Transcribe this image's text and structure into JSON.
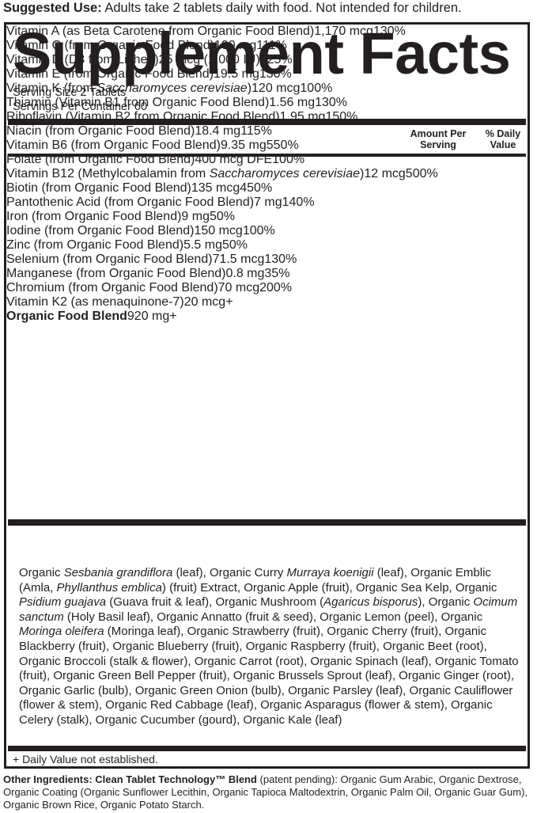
{
  "suggested_use": {
    "label": "Suggested Use:",
    "text": " Adults take 2 tablets daily with food. Not intended for children."
  },
  "title": "Supplement Facts",
  "serving_size": "Serving Size 2 Tablets",
  "servings_per_container": "Servings Per Container 60",
  "header": {
    "amount": "Amount Per Serving",
    "daily_value": "% Daily Value"
  },
  "rows": [
    {
      "name": [
        "Vitamin A (as Beta Carotene from Organic Food Blend)"
      ],
      "amount": "1,170 mcg",
      "dv": "130%"
    },
    {
      "name": [
        "Vitamin C (from Organic Food Blend)"
      ],
      "amount": "100 mg",
      "dv": "111%"
    },
    {
      "name": [
        "Vitamin D (D3 from Lichen)"
      ],
      "amount": "25 mcg (1,000 IU)",
      "dv": "125%"
    },
    {
      "name": [
        "Vitamin E (from Organic Food Blend)"
      ],
      "amount": "19.5 mg",
      "dv": "130%"
    },
    {
      "name": [
        "Vitamin K (from ",
        "Saccharomyces cerevisiae",
        ")"
      ],
      "amount": "120 mcg",
      "dv": "100%"
    },
    {
      "name": [
        "Thiamin (Vitamin B1 from Organic Food Blend)"
      ],
      "amount": "1.56 mg",
      "dv": "130%"
    },
    {
      "name": [
        "Riboflavin (Vitamin B2 from Organic Food Blend)"
      ],
      "amount": "1.95 mg",
      "dv": "150%"
    },
    {
      "name": [
        "Niacin (from Organic Food Blend)"
      ],
      "amount": "18.4 mg",
      "dv": "115%"
    },
    {
      "name": [
        "Vitamin B6 (from Organic Food Blend)"
      ],
      "amount": "9.35 mg",
      "dv": "550%"
    },
    {
      "name": [
        "Folate (from Organic Food Blend)"
      ],
      "amount": "400 mcg DFE",
      "dv": "100%"
    },
    {
      "name": [
        "Vitamin B12 (Methylcobalamin from ",
        "Saccharomyces cerevisiae",
        ")"
      ],
      "amount": "12 mcg",
      "dv": "500%"
    },
    {
      "name": [
        "Biotin (from Organic Food Blend)"
      ],
      "amount": "135 mcg",
      "dv": "450%"
    },
    {
      "name": [
        "Pantothenic Acid (from Organic Food Blend)"
      ],
      "amount": "7 mg",
      "dv": "140%"
    },
    {
      "name": [
        "Iron (from Organic Food Blend)"
      ],
      "amount": "9 mg",
      "dv": "50%"
    },
    {
      "name": [
        "Iodine (from Organic Food Blend)"
      ],
      "amount": "150 mcg",
      "dv": "100%"
    },
    {
      "name": [
        "Zinc (from Organic Food Blend)"
      ],
      "amount": "5.5 mg",
      "dv": "50%"
    },
    {
      "name": [
        "Selenium (from Organic Food Blend)"
      ],
      "amount": "71.5 mcg",
      "dv": "130%"
    },
    {
      "name": [
        "Manganese (from Organic Food Blend)"
      ],
      "amount": "0.8 mg",
      "dv": "35%"
    },
    {
      "name": [
        "Chromium (from Organic Food Blend)"
      ],
      "amount": "70 mcg",
      "dv": "200%"
    }
  ],
  "extra_rows": [
    {
      "name": [
        "Vitamin K2 (as menaquinone-7)"
      ],
      "amount": "20 mcg",
      "dv": "+"
    },
    {
      "name": [
        "Organic Food Blend"
      ],
      "amount": "920 mg",
      "dv": "+"
    }
  ],
  "blend": [
    "Organic ",
    "Sesbania grandiflora",
    " (leaf), Organic Curry ",
    "Murraya koenigii",
    " (leaf), Organic Emblic (Amla, ",
    "Phyllanthus emblica",
    ") (fruit) Extract, Organic Apple (fruit), Organic Sea Kelp, Organic ",
    "Psidium guajava",
    " (Guava fruit & leaf), Organic Mushroom (",
    "Agaricus bisporus",
    "), Organic ",
    "Ocimum sanctum",
    " (Holy Basil leaf), Organic Annatto (fruit & seed), Organic Lemon (peel), Organic ",
    "Moringa oleifera",
    " (Moringa leaf), Organic Strawberry (fruit), Organic Cherry (fruit), Organic Blackberry (fruit), Organic Blueberry (fruit), Organic Raspberry (fruit), Organic Beet (root), Organic Broccoli (stalk & flower), Organic Carrot (root), Organic Spinach (leaf), Organic Tomato (fruit), Organic Green Bell Pepper (fruit), Organic Brussels Sprout (leaf), Organic Ginger (root), Organic Garlic (bulb), Organic Green Onion (bulb), Organic Parsley (leaf), Organic Cauliflower (flower & stem), Organic Red Cabbage (leaf), Organic Asparagus (flower & stem), Organic Celery (stalk), Organic Cucumber (gourd), Organic Kale (leaf)"
  ],
  "footnote": "+ Daily Value not established.",
  "other_ingredients": {
    "label": "Other Ingredients: Clean Tablet Technology™ Blend",
    "text": " (patent pending): Organic Gum Arabic, Organic Dextrose, Organic Coating (Organic Sunflower Lecithin, Organic Tapioca Maltodextrin, Organic Palm Oil, Organic Guar Gum), Organic Brown Rice, Organic Potato Starch."
  }
}
